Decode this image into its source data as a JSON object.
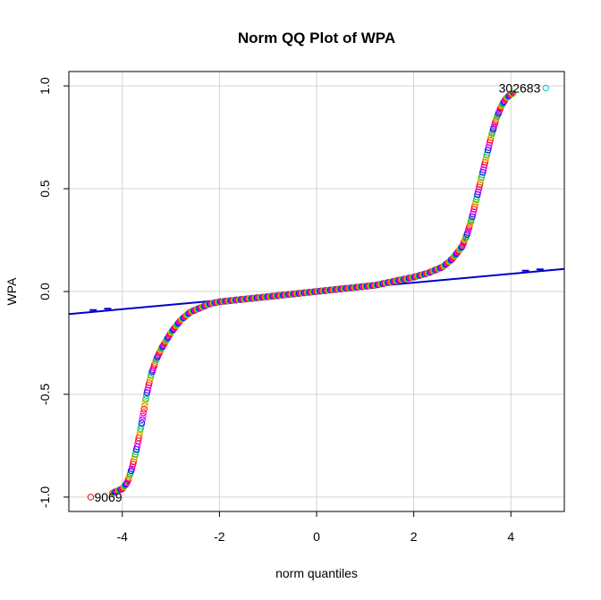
{
  "chart_data": {
    "type": "scatter",
    "title": "Norm QQ Plot of WPA",
    "xlabel": "norm quantiles",
    "ylabel": "WPA",
    "xlim": [
      -5.1,
      5.1
    ],
    "ylim": [
      -1.07,
      1.07
    ],
    "xticks": [
      -4,
      -2,
      0,
      2,
      4
    ],
    "yticks": [
      -1.0,
      -0.5,
      0.0,
      0.5,
      1.0
    ],
    "x_tick_labels": [
      "-4",
      "-2",
      "0",
      "2",
      "4"
    ],
    "y_tick_labels": [
      "-1.0",
      "-0.5",
      "0.0",
      "0.5",
      "1.0"
    ],
    "grid": true,
    "reference_line": {
      "intercept": 0.0,
      "slope": 0.0215,
      "color": "#0000cc"
    },
    "curve": {
      "description_points_x": [
        -4.6,
        -4.3,
        -4.0,
        -3.9,
        -3.8,
        -3.7,
        -3.6,
        -3.5,
        -3.4,
        -3.3,
        -3.2,
        -3.0,
        -2.8,
        -2.6,
        -2.4,
        -2.2,
        -2.0,
        -1.6,
        -1.2,
        -0.8,
        -0.4,
        0.0,
        0.4,
        0.8,
        1.2,
        1.6,
        2.0,
        2.3,
        2.6,
        2.8,
        3.0,
        3.1,
        3.2,
        3.3,
        3.4,
        3.5,
        3.6,
        3.7,
        3.8,
        3.9,
        4.0,
        4.2,
        4.6
      ],
      "description_points_y": [
        -1.0,
        -0.99,
        -0.96,
        -0.93,
        -0.86,
        -0.76,
        -0.64,
        -0.5,
        -0.4,
        -0.33,
        -0.28,
        -0.2,
        -0.14,
        -0.1,
        -0.08,
        -0.06,
        -0.05,
        -0.04,
        -0.03,
        -0.02,
        -0.01,
        0.0,
        0.01,
        0.02,
        0.03,
        0.05,
        0.07,
        0.09,
        0.12,
        0.16,
        0.22,
        0.28,
        0.36,
        0.46,
        0.56,
        0.66,
        0.76,
        0.84,
        0.9,
        0.94,
        0.96,
        0.98,
        0.99
      ]
    },
    "labeled_points": [
      {
        "label": "302683",
        "x": 4.72,
        "y": 0.99
      },
      {
        "label": "9069",
        "x": -4.65,
        "y": -1.0
      }
    ],
    "point_colors": [
      "#ff0000",
      "#ff8000",
      "#c8c800",
      "#00c800",
      "#00c8c8",
      "#0000ff",
      "#8000ff",
      "#ff00ff",
      "#ff0080"
    ]
  }
}
